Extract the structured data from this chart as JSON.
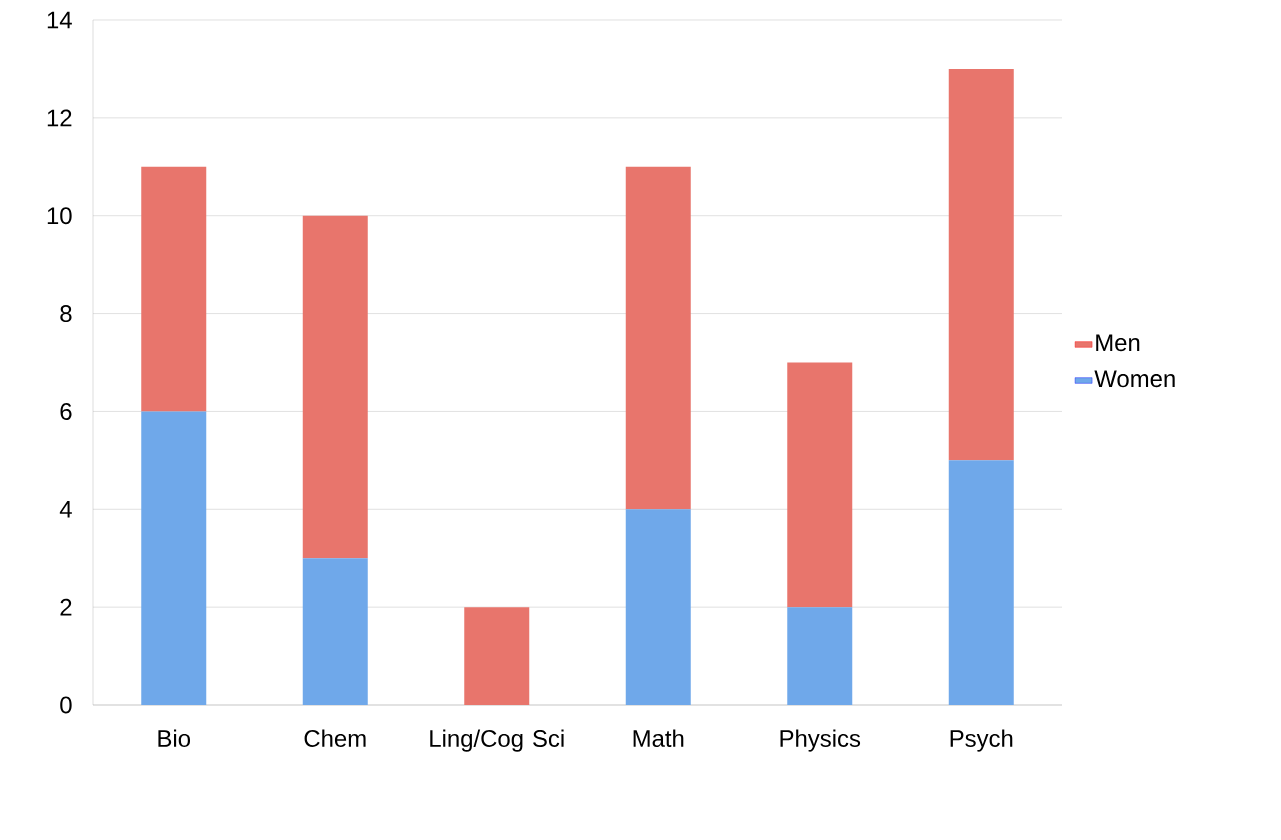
{
  "chart_data": {
    "type": "bar",
    "stacked": true,
    "categories": [
      "Bio",
      "Chem",
      "Ling/Cog Sci",
      "Math",
      "Physics",
      "Psych"
    ],
    "series": [
      {
        "name": "Women",
        "color": "#6fa8ea",
        "values": [
          6,
          3,
          0,
          4,
          2,
          5
        ]
      },
      {
        "name": "Men",
        "color": "#e8756c",
        "values": [
          5,
          7,
          2,
          7,
          5,
          8
        ]
      }
    ],
    "ylim": [
      0,
      14
    ],
    "yticks": [
      0,
      2,
      4,
      6,
      8,
      10,
      12,
      14
    ],
    "grid": "y",
    "legend": "right"
  }
}
